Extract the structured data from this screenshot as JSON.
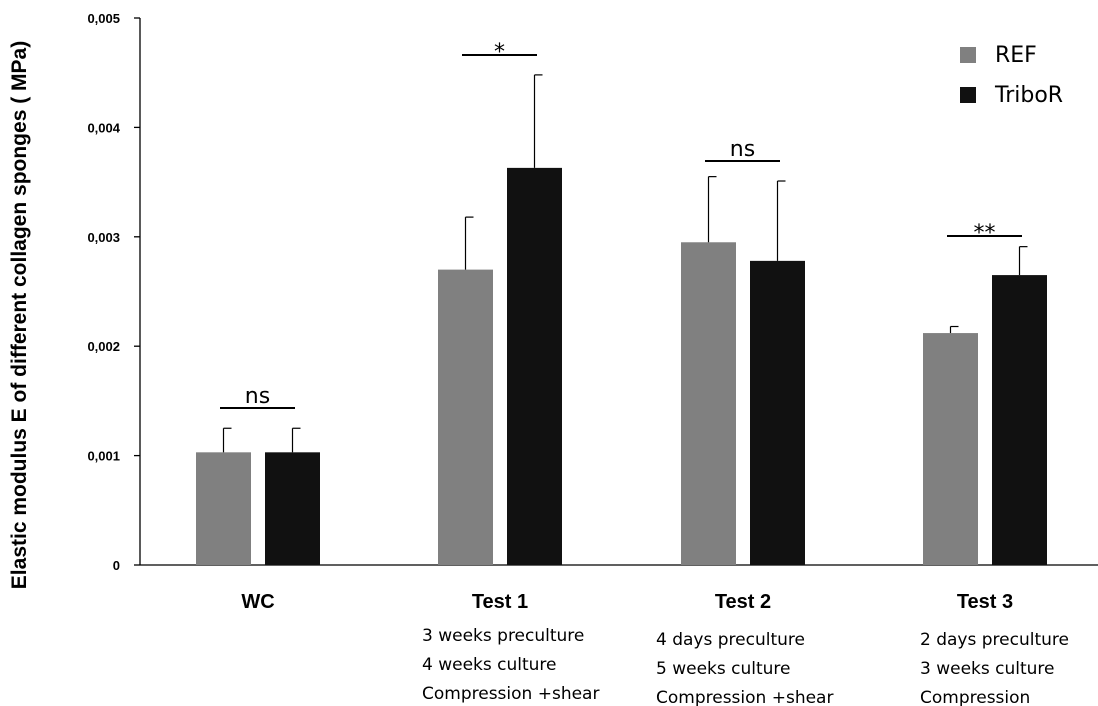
{
  "chart_data": {
    "type": "bar",
    "ylabel": "Elastic modulus E of different collagen sponges ( MPa)",
    "ylim": [
      0,
      0.005
    ],
    "yticks": [
      0,
      0.001,
      0.002,
      0.003,
      0.004,
      0.005
    ],
    "ytick_labels": [
      "0",
      "0,001",
      "0,002",
      "0,003",
      "0,004",
      "0,005"
    ],
    "categories": [
      "WC",
      "Test 1",
      "Test 2",
      "Test 3"
    ],
    "category_details": [
      [],
      [
        "3 weeks preculture",
        "4 weeks culture",
        "Compression +shear"
      ],
      [
        "4 days  preculture",
        "5 weeks culture",
        "Compression +shear"
      ],
      [
        "2 days  preculture",
        "3 weeks culture",
        "Compression"
      ]
    ],
    "series": [
      {
        "name": "REF",
        "color": "#808080",
        "values": [
          0.00103,
          0.0027,
          0.00295,
          0.00212
        ],
        "errors": [
          0.00022,
          0.00048,
          0.0006,
          6e-05
        ]
      },
      {
        "name": "TriboR",
        "color": "#111111",
        "values": [
          0.00103,
          0.00363,
          0.00278,
          0.00265
        ],
        "errors": [
          0.00022,
          0.00085,
          0.00073,
          0.00026
        ]
      }
    ],
    "significance": [
      "ns",
      "*",
      "ns",
      "**"
    ],
    "legend_position": "top-right",
    "grid": false
  }
}
